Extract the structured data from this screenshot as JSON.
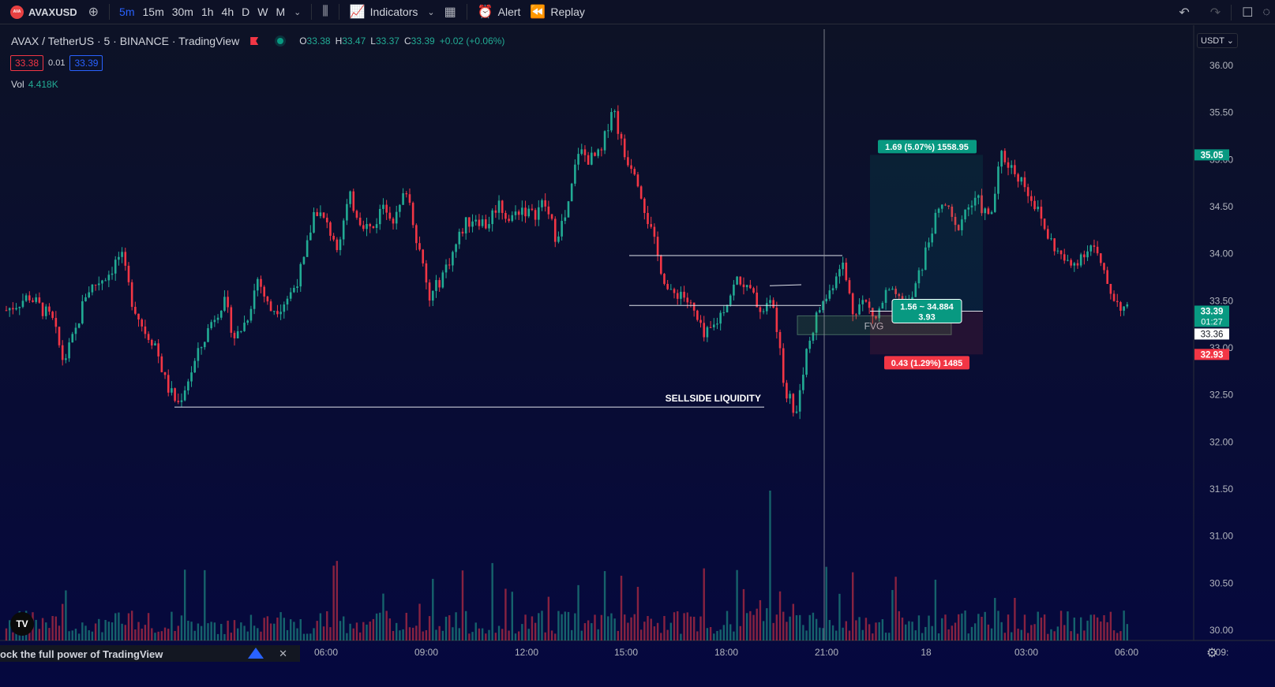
{
  "toolbar": {
    "symbol": "AVAXUSD",
    "symbol_badge": "AVA",
    "intervals": [
      {
        "label": "5m",
        "active": true
      },
      {
        "label": "15m",
        "active": false
      },
      {
        "label": "30m",
        "active": false
      },
      {
        "label": "1h",
        "active": false
      },
      {
        "label": "4h",
        "active": false
      },
      {
        "label": "D",
        "active": false
      },
      {
        "label": "W",
        "active": false
      },
      {
        "label": "M",
        "active": false
      }
    ],
    "indicators_label": "Indicators",
    "alert_label": "Alert",
    "replay_label": "Replay",
    "icons": [
      "plus-circle-icon",
      "chevron-down-icon",
      "candles-icon",
      "indicators-icon",
      "layouts-icon",
      "alert-clock-icon",
      "replay-icon",
      "undo-icon",
      "redo-icon",
      "fullscreen-icon",
      "snapshot-icon"
    ]
  },
  "legend": {
    "title": "AVAX / TetherUS · 5 · BINANCE · TradingView",
    "o_label": "O",
    "o": "33.38",
    "h_label": "H",
    "h": "33.47",
    "l_label": "L",
    "l": "33.37",
    "c_label": "C",
    "c": "33.39",
    "change": "+0.02 (+0.06%)",
    "sell_price": "33.38",
    "spread": "0.01",
    "buy_price": "33.39",
    "vol_label": "Vol",
    "vol_value": "4.418K"
  },
  "price_scale": {
    "currency": "USDT",
    "ticks": [
      "36.00",
      "35.50",
      "35.00",
      "34.50",
      "34.00",
      "33.50",
      "33.00",
      "32.50",
      "32.00",
      "31.50",
      "31.00",
      "30.50",
      "30.00"
    ],
    "labels": {
      "target": "35.05",
      "last": "33.39",
      "countdown": "01:27",
      "crosshair": "33.36",
      "stop": "32.93"
    }
  },
  "time_scale": {
    "ticks": [
      "06:00",
      "09:00",
      "12:00",
      "15:00",
      "18:00",
      "21:00",
      "18",
      "03:00",
      "06:00",
      "09:"
    ]
  },
  "annotations": {
    "sellside": "SELLSIDE LIQUIDITY",
    "fvg": "FVG",
    "target_label": "1.69 (5.07%) 1558.95",
    "entry_label_1": "1.56 ~ 34.884",
    "entry_label_2": "3.93",
    "stop_label": "0.43 (1.29%) 1485"
  },
  "banner": {
    "text": "ock the full power of TradingView",
    "close": "✕"
  },
  "colors": {
    "up": "#22ab94",
    "down": "#f23645",
    "background": "#0b0f25",
    "accent": "#2962ff"
  },
  "chart_data": {
    "type": "candlestick",
    "ylim": [
      29.9,
      36.15
    ],
    "price_path": [
      [
        0,
        33.4
      ],
      [
        2,
        33.55
      ],
      [
        4,
        33.3
      ],
      [
        5,
        32.85
      ],
      [
        6,
        33.15
      ],
      [
        7,
        33.6
      ],
      [
        9,
        33.8
      ],
      [
        10,
        34.0
      ],
      [
        11,
        33.5
      ],
      [
        12,
        33.2
      ],
      [
        13,
        33.05
      ],
      [
        14,
        32.6
      ],
      [
        15,
        32.4
      ],
      [
        17,
        33.0
      ],
      [
        18,
        33.3
      ],
      [
        19,
        33.5
      ],
      [
        20,
        33.1
      ],
      [
        21,
        33.3
      ],
      [
        22,
        33.75
      ],
      [
        23,
        33.4
      ],
      [
        24,
        33.45
      ],
      [
        25,
        33.6
      ],
      [
        26,
        33.9
      ],
      [
        27,
        34.5
      ],
      [
        28,
        34.3
      ],
      [
        29,
        34.1
      ],
      [
        30,
        34.6
      ],
      [
        31,
        34.35
      ],
      [
        32,
        34.25
      ],
      [
        33,
        34.55
      ],
      [
        34,
        34.35
      ],
      [
        35,
        34.7
      ],
      [
        36,
        34.1
      ],
      [
        37,
        33.5
      ],
      [
        38,
        33.75
      ],
      [
        39,
        34.0
      ],
      [
        40,
        34.3
      ],
      [
        41,
        34.4
      ],
      [
        42,
        34.3
      ],
      [
        43,
        34.55
      ],
      [
        44,
        34.35
      ],
      [
        45,
        34.5
      ],
      [
        46,
        34.4
      ],
      [
        47,
        34.55
      ],
      [
        48,
        34.2
      ],
      [
        49,
        34.4
      ],
      [
        50,
        35.1
      ],
      [
        51,
        35.0
      ],
      [
        52,
        35.05
      ],
      [
        53,
        35.6
      ],
      [
        54,
        35.05
      ],
      [
        55,
        34.9
      ],
      [
        56,
        34.4
      ],
      [
        57,
        33.95
      ],
      [
        58,
        33.55
      ],
      [
        59,
        33.6
      ],
      [
        60,
        33.4
      ],
      [
        61,
        33.1
      ],
      [
        62,
        33.25
      ],
      [
        63,
        33.5
      ],
      [
        64,
        33.75
      ],
      [
        65,
        33.6
      ],
      [
        66,
        33.4
      ],
      [
        67,
        33.5
      ],
      [
        68,
        32.6
      ],
      [
        69,
        32.3
      ],
      [
        70,
        33.0
      ],
      [
        71,
        33.4
      ],
      [
        72,
        33.6
      ],
      [
        73,
        33.95
      ],
      [
        74,
        33.4
      ],
      [
        75,
        33.5
      ],
      [
        76,
        33.3
      ],
      [
        77,
        33.6
      ],
      [
        78,
        33.5
      ],
      [
        79,
        33.45
      ],
      [
        80,
        33.85
      ],
      [
        81,
        34.3
      ],
      [
        82,
        34.55
      ],
      [
        83,
        34.25
      ],
      [
        84,
        34.5
      ],
      [
        85,
        34.55
      ],
      [
        86,
        34.35
      ],
      [
        87,
        35.05
      ],
      [
        88,
        34.9
      ],
      [
        89,
        34.75
      ],
      [
        90,
        34.5
      ],
      [
        91,
        34.2
      ],
      [
        92,
        34.0
      ],
      [
        93,
        33.85
      ],
      [
        94,
        34.0
      ],
      [
        95,
        34.1
      ],
      [
        96,
        33.75
      ],
      [
        97,
        33.5
      ],
      [
        98,
        33.39
      ]
    ],
    "levels": [
      {
        "name": "sellside-liquidity",
        "price": 32.37
      },
      {
        "name": "range-high",
        "price": 33.98
      },
      {
        "name": "range-mid",
        "price": 33.45
      }
    ]
  }
}
